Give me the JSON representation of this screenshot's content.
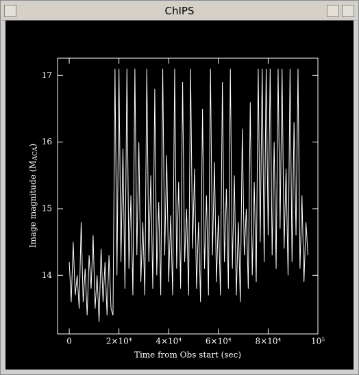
{
  "window": {
    "title": "ChIPS"
  },
  "chart_data": {
    "type": "line",
    "xlabel": "Time from Obs start (sec)",
    "ylabel_parts": [
      "Image magnitude (M",
      "ACA",
      ")"
    ],
    "xlim": [
      -4700,
      100000
    ],
    "ylim": [
      13.12,
      17.26
    ],
    "xticks": [
      0,
      {
        "value": 20000,
        "label": "2×10⁴"
      },
      {
        "value": 40000,
        "label": "4×10⁴"
      },
      {
        "value": 60000,
        "label": "6×10⁴"
      },
      {
        "value": 80000,
        "label": "8×10⁴"
      },
      {
        "value": 100000,
        "label": "10⁵"
      }
    ],
    "yticks": [
      14,
      15,
      16,
      17
    ],
    "series": [
      {
        "color": "#ffffff",
        "x": [
          0,
          800,
          1600,
          2400,
          3200,
          4000,
          4800,
          5600,
          6400,
          7200,
          8000,
          8800,
          9600,
          10400,
          11200,
          12000,
          12800,
          13600,
          14400,
          15200,
          16000,
          16800,
          17600,
          18400,
          19200,
          20000,
          20800,
          21600,
          22400,
          23200,
          24000,
          24800,
          25600,
          26400,
          27200,
          28000,
          28800,
          29600,
          30400,
          31200,
          32000,
          32800,
          33600,
          34400,
          35200,
          36000,
          36800,
          37600,
          38400,
          39200,
          40000,
          40800,
          41600,
          42400,
          43200,
          44000,
          44800,
          45600,
          46400,
          47200,
          48000,
          48800,
          49600,
          50400,
          51200,
          52000,
          52800,
          53600,
          54400,
          55200,
          56000,
          56800,
          57600,
          58400,
          59200,
          60000,
          60800,
          61600,
          62400,
          63200,
          64000,
          64800,
          65600,
          66400,
          67200,
          68000,
          68800,
          69600,
          70400,
          71200,
          72000,
          72800,
          73600,
          74400,
          75200,
          76000,
          76800,
          77600,
          78400,
          79200,
          80000,
          80800,
          81600,
          82400,
          83200,
          84000,
          84800,
          85600,
          86400,
          87200,
          88000,
          88800,
          89600,
          90400,
          91200,
          92000,
          92800,
          93600,
          94400,
          95200,
          96000
        ],
        "values": [
          14.2,
          13.6,
          14.5,
          13.7,
          14.0,
          13.5,
          14.8,
          13.6,
          14.1,
          13.4,
          14.3,
          13.8,
          14.6,
          13.5,
          14.0,
          13.3,
          14.4,
          13.6,
          14.2,
          13.4,
          14.3,
          13.5,
          13.4,
          17.1,
          14.0,
          17.1,
          14.2,
          15.9,
          13.8,
          17.1,
          14.1,
          15.2,
          13.7,
          17.1,
          14.3,
          16.0,
          13.9,
          14.8,
          13.7,
          17.1,
          14.2,
          15.5,
          13.8,
          16.8,
          14.0,
          15.1,
          13.7,
          17.1,
          14.3,
          15.8,
          13.9,
          14.9,
          13.7,
          17.1,
          14.1,
          15.4,
          13.8,
          16.9,
          14.2,
          15.0,
          13.7,
          17.1,
          14.4,
          15.6,
          13.8,
          14.8,
          13.6,
          16.5,
          14.1,
          15.2,
          13.7,
          17.1,
          14.3,
          15.7,
          13.9,
          14.9,
          13.7,
          16.9,
          14.2,
          15.3,
          13.8,
          17.1,
          14.1,
          15.5,
          13.7,
          14.8,
          13.6,
          16.2,
          14.3,
          15.0,
          13.8,
          16.6,
          14.0,
          15.4,
          13.9,
          17.1,
          14.5,
          17.1,
          14.2,
          17.1,
          14.6,
          17.1,
          14.3,
          16.0,
          14.1,
          17.1,
          14.7,
          17.1,
          14.4,
          15.6,
          14.0,
          17.1,
          14.2,
          16.3,
          14.6,
          17.1,
          14.1,
          15.2,
          13.9,
          14.8,
          14.3
        ]
      }
    ]
  }
}
